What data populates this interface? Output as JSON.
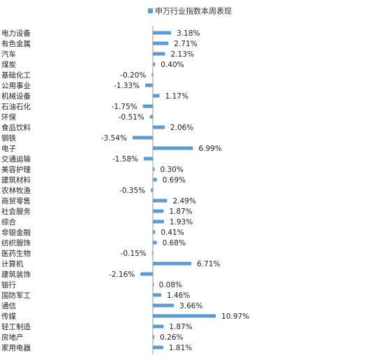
{
  "chart_data": {
    "type": "bar",
    "orientation": "horizontal",
    "legend": {
      "label": "申万行业指数本周表现",
      "placement": "top-center"
    },
    "series": [
      {
        "name": "申万行业指数本周表现",
        "color": "#5b9bd5",
        "values": [
          3.18,
          2.71,
          2.13,
          0.4,
          -0.2,
          -1.33,
          1.17,
          -1.75,
          -0.51,
          2.06,
          -3.54,
          6.99,
          -1.58,
          0.3,
          0.69,
          -0.35,
          2.49,
          1.87,
          1.93,
          0.41,
          0.68,
          -0.15,
          6.71,
          -2.16,
          0.08,
          1.46,
          3.66,
          10.97,
          1.87,
          0.26,
          1.81
        ],
        "labels": [
          "3.18%",
          "2.71%",
          "2.13%",
          "0.40%",
          "-0.20%",
          "-1.33%",
          "1.17%",
          "-1.75%",
          "-0.51%",
          "2.06%",
          "-3.54%",
          "6.99%",
          "-1.58%",
          "0.30%",
          "0.69%",
          "-0.35%",
          "2.49%",
          "1.87%",
          "1.93%",
          "0.41%",
          "0.68%",
          "-0.15%",
          "6.71%",
          "-2.16%",
          "0.08%",
          "1.46%",
          "3.66%",
          "10.97%",
          "1.87%",
          "0.26%",
          "1.81%"
        ]
      }
    ],
    "categories": [
      "电力设备",
      "有色金属",
      "汽车",
      "煤炭",
      "基础化工",
      "公用事业",
      "机械设备",
      "石油石化",
      "环保",
      "食品饮料",
      "钢铁",
      "电子",
      "交通运输",
      "美容护理",
      "建筑材料",
      "农林牧渔",
      "商贸零售",
      "社会服务",
      "综合",
      "非银金融",
      "纺织服饰",
      "医药生物",
      "计算机",
      "建筑装饰",
      "银行",
      "国防军工",
      "通信",
      "传媒",
      "轻工制造",
      "房地产",
      "家用电器"
    ],
    "xlim": [
      -3.54,
      10.97
    ],
    "grid": false
  }
}
